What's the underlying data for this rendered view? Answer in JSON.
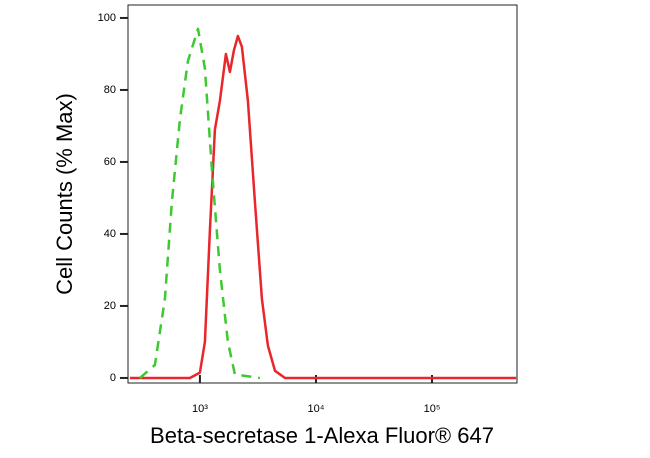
{
  "chart_data": {
    "type": "line",
    "x_label": "Beta-secretase 1-Alexa Fluor® 647",
    "y_label": "Cell Counts (% Max)",
    "x_log": true,
    "xlim": [
      240,
      540000
    ],
    "ylim": [
      -1.4,
      103.6
    ],
    "xticks": [
      {
        "value": 1000,
        "label": "10³"
      },
      {
        "value": 10000,
        "label": "10⁴"
      },
      {
        "value": 100000,
        "label": "10⁵"
      }
    ],
    "yticks": [
      0,
      20,
      40,
      60,
      80,
      100
    ],
    "series": [
      {
        "color": "#e8262b",
        "dash": false,
        "x": [
          249,
          820,
          1000,
          1104,
          1219,
          1347,
          1487,
          1675,
          1814,
          1963,
          2126,
          2301,
          2593,
          2979,
          3422,
          3856,
          4433,
          5405,
          530000
        ],
        "values": [
          0,
          0,
          1.5,
          10,
          41,
          69,
          77,
          90,
          85,
          91,
          95,
          92,
          77,
          49,
          22,
          9,
          2,
          0,
          0
        ]
      },
      {
        "color": "#3ec832",
        "dash": true,
        "x": [
          304,
          409,
          499,
          574,
          673,
          788,
          962,
          1104,
          1269,
          1487,
          1743,
          2003,
          3290
        ],
        "values": [
          0,
          3.6,
          22,
          49,
          72,
          88,
          97,
          86,
          58,
          30,
          10,
          1,
          0
        ]
      }
    ]
  }
}
